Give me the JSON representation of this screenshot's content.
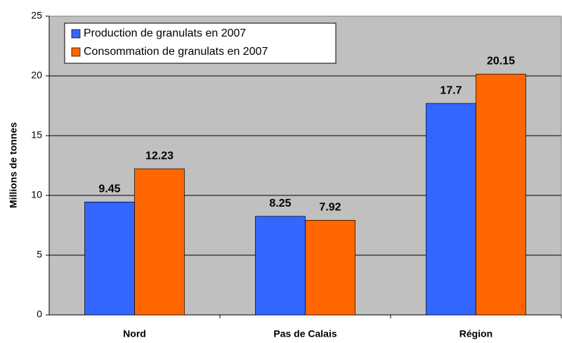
{
  "chart_data": {
    "type": "bar",
    "y_label": "Millions de tonnes",
    "categories": [
      "Nord",
      "Pas de Calais",
      "Région"
    ],
    "series": [
      {
        "name": "Production de granulats en 2007",
        "color": "#3366ff",
        "values": [
          9.45,
          8.25,
          17.7
        ]
      },
      {
        "name": "Consommation de granulats en 2007",
        "color": "#ff6600",
        "values": [
          12.23,
          7.92,
          20.15
        ]
      }
    ],
    "ylim": [
      0,
      25
    ],
    "yticks": [
      0,
      5,
      10,
      15,
      20,
      25
    ],
    "grid": true,
    "legend": "top-left",
    "background": "#c0c0c0"
  }
}
